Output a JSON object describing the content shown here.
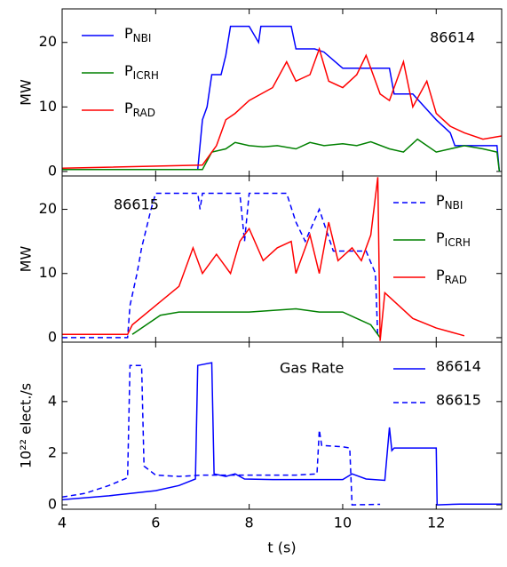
{
  "chart_data": [
    {
      "type": "line",
      "ylabel": "MW",
      "annotation": "86614",
      "annotation_loc": "upper right",
      "legend": "upper left",
      "xlim": [
        4,
        13.4
      ],
      "ylim": [
        -0.7,
        25.2
      ],
      "yticks": [
        0,
        10,
        20
      ],
      "series": [
        {
          "name": "PNBI",
          "color": "#0000ff",
          "linestyle": "solid",
          "x": [
            4,
            6.9,
            7.0,
            7.1,
            7.2,
            7.4,
            7.5,
            7.6,
            8.0,
            8.2,
            8.25,
            8.5,
            8.9,
            9.0,
            9.4,
            9.6,
            10.0,
            10.5,
            11.0,
            11.1,
            11.5,
            12.0,
            12.3,
            12.4,
            13.0,
            13.3,
            13.35
          ],
          "values": [
            0.3,
            0.3,
            8,
            10,
            15,
            15,
            18,
            22.5,
            22.5,
            20,
            22.5,
            22.5,
            22.5,
            19,
            19,
            18.5,
            16,
            16,
            16,
            12,
            12,
            8,
            6,
            4,
            4,
            4,
            0
          ]
        },
        {
          "name": "PICRH",
          "color": "#008000",
          "linestyle": "solid",
          "x": [
            4,
            7.0,
            7.2,
            7.5,
            7.7,
            8.0,
            8.3,
            8.6,
            9.0,
            9.3,
            9.6,
            10.0,
            10.3,
            10.6,
            11.0,
            11.3,
            11.6,
            12.0,
            12.3,
            12.6,
            13.0,
            13.3,
            13.35
          ],
          "values": [
            0.3,
            0.3,
            3,
            3.5,
            4.5,
            4,
            3.8,
            4,
            3.5,
            4.5,
            4,
            4.3,
            4,
            4.6,
            3.5,
            3,
            5,
            3,
            3.5,
            4,
            3.5,
            3,
            0
          ]
        },
        {
          "name": "PRAD",
          "color": "#ff0000",
          "linestyle": "solid",
          "x": [
            4,
            7.0,
            7.3,
            7.5,
            7.7,
            8.0,
            8.5,
            8.8,
            9.0,
            9.3,
            9.5,
            9.7,
            10.0,
            10.3,
            10.5,
            10.8,
            11.0,
            11.3,
            11.5,
            11.8,
            12.0,
            12.3,
            12.6,
            13.0,
            13.4
          ],
          "values": [
            0.5,
            1,
            4,
            8,
            9,
            11,
            13,
            17,
            14,
            15,
            19,
            14,
            13,
            15,
            18,
            12,
            11,
            17,
            10,
            14,
            9,
            7,
            6,
            5,
            5.5
          ]
        }
      ]
    },
    {
      "type": "line",
      "ylabel": "MW",
      "annotation": "86615",
      "annotation_loc": "upper left",
      "legend": "upper right",
      "xlim": [
        4,
        13.4
      ],
      "ylim": [
        -0.7,
        25.2
      ],
      "yticks": [
        0,
        10,
        20
      ],
      "series": [
        {
          "name": "PNBI",
          "color": "#0000ff",
          "linestyle": "dashed",
          "x": [
            4,
            5.4,
            5.45,
            5.6,
            5.7,
            5.9,
            6.0,
            6.9,
            6.95,
            7.0,
            7.8,
            7.9,
            8.0,
            8.8,
            9.0,
            9.2,
            9.5,
            9.8,
            10.5,
            10.7,
            10.75
          ],
          "values": [
            0,
            0,
            5,
            10,
            14,
            20,
            22.5,
            22.5,
            20,
            22.5,
            22.5,
            15,
            22.5,
            22.5,
            18,
            15,
            20,
            13.5,
            13.5,
            10,
            0
          ]
        },
        {
          "name": "PICRH",
          "color": "#008000",
          "linestyle": "solid",
          "x": [
            5.5,
            5.8,
            6.1,
            6.5,
            7.0,
            8.0,
            9.0,
            9.5,
            10.0,
            10.3,
            10.6,
            10.8
          ],
          "values": [
            0.5,
            2,
            3.5,
            4,
            4,
            4,
            4.5,
            4,
            4,
            3,
            2,
            0
          ]
        },
        {
          "name": "PRAD",
          "color": "#ff0000",
          "linestyle": "solid",
          "x": [
            4,
            5.4,
            5.5,
            6.0,
            6.5,
            6.8,
            7.0,
            7.3,
            7.6,
            7.8,
            8.0,
            8.3,
            8.6,
            8.9,
            9.0,
            9.3,
            9.5,
            9.7,
            9.9,
            10.2,
            10.4,
            10.6,
            10.75,
            10.8,
            10.9,
            11.2,
            11.5,
            12.0,
            12.5,
            12.6
          ],
          "values": [
            0.5,
            0.5,
            2,
            5,
            8,
            14,
            10,
            13,
            10,
            15,
            17,
            12,
            14,
            15,
            10,
            16,
            10,
            18,
            12,
            14,
            12,
            16,
            25,
            -0.5,
            7,
            5,
            3,
            1.5,
            0.5,
            0.3
          ]
        }
      ]
    },
    {
      "type": "line",
      "ylabel": "10²² elect./s",
      "xlabel": "t (s)",
      "legend": "upper right",
      "legend_title": "Gas Rate",
      "xlim": [
        4,
        13.4
      ],
      "ylim": [
        -0.17,
        6.3
      ],
      "yticks": [
        0,
        2,
        4
      ],
      "xticks": [
        4,
        6,
        8,
        10,
        12
      ],
      "series": [
        {
          "name": "86614",
          "color": "#0000ff",
          "linestyle": "solid",
          "x": [
            4,
            5,
            5.5,
            6,
            6.5,
            6.85,
            6.9,
            7.2,
            7.25,
            7.5,
            7.7,
            7.9,
            8.5,
            9.5,
            10.0,
            10.2,
            10.5,
            10.9,
            11.0,
            11.05,
            11.1,
            12.0,
            12.02,
            12.5,
            13.4
          ],
          "values": [
            0.2,
            0.35,
            0.45,
            0.55,
            0.75,
            1.0,
            5.4,
            5.5,
            1.2,
            1.1,
            1.2,
            1.0,
            0.98,
            0.98,
            0.98,
            1.2,
            1.0,
            0.95,
            3.0,
            2.1,
            2.2,
            2.2,
            0,
            0.03,
            0.03
          ]
        },
        {
          "name": "86615",
          "color": "#0000ff",
          "linestyle": "dashed",
          "x": [
            4,
            4.5,
            5,
            5.4,
            5.45,
            5.7,
            5.75,
            6,
            6.5,
            7,
            8,
            9,
            9.45,
            9.5,
            9.55,
            10.0,
            10.15,
            10.2,
            10.8
          ],
          "values": [
            0.3,
            0.45,
            0.75,
            1.05,
            5.4,
            5.4,
            1.5,
            1.15,
            1.1,
            1.15,
            1.15,
            1.15,
            1.2,
            2.9,
            2.3,
            2.25,
            2.2,
            0,
            0.02
          ]
        }
      ]
    }
  ]
}
